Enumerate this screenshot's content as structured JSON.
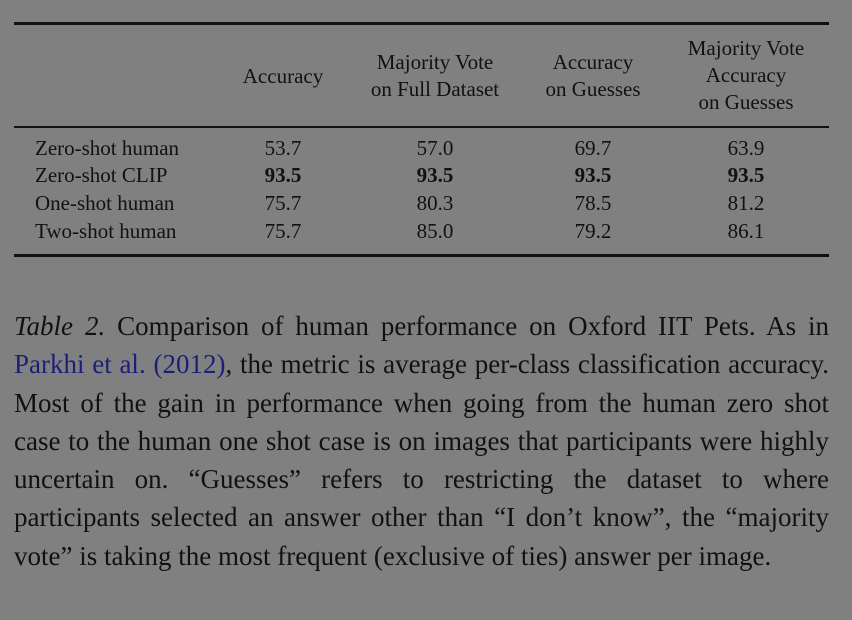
{
  "table": {
    "headers": [
      [
        "Accuracy"
      ],
      [
        "Majority Vote",
        "on Full Dataset"
      ],
      [
        "Accuracy",
        "on Guesses"
      ],
      [
        "Majority Vote",
        "Accuracy",
        "on Guesses"
      ]
    ],
    "rows": [
      {
        "label": "Zero-shot human",
        "values": [
          "53.7",
          "57.0",
          "69.7",
          "63.9"
        ],
        "bold": false
      },
      {
        "label": "Zero-shot CLIP",
        "values": [
          "93.5",
          "93.5",
          "93.5",
          "93.5"
        ],
        "bold": true
      },
      {
        "label": "One-shot human",
        "values": [
          "75.7",
          "80.3",
          "78.5",
          "81.2"
        ],
        "bold": false
      },
      {
        "label": "Two-shot human",
        "values": [
          "75.7",
          "85.0",
          "79.2",
          "86.1"
        ],
        "bold": false
      }
    ]
  },
  "caption": {
    "label": "Table 2.",
    "text_1": " Comparison of human performance on Oxford IIT Pets. As in ",
    "citation_author": "Parkhi et al.",
    "citation_year": "2012",
    "text_2": ", the metric is average per-class classification accuracy. Most of the gain in performance when going from the human zero shot case to the human one shot case is on images that participants were highly uncertain on. “Guesses” refers to restricting the dataset to where participants selected an answer other than “I don’t know”, the “majority vote” is taking the most frequent (exclusive of ties) answer per image.",
    "cite_color": "#1c1f7a"
  }
}
